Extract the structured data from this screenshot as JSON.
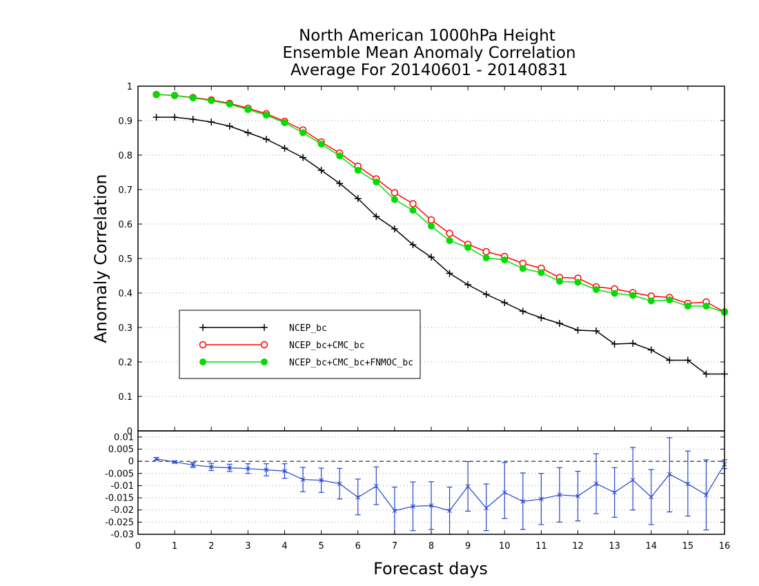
{
  "chart_data": [
    {
      "type": "line",
      "title": [
        "North American 1000hPa Height",
        "Ensemble Mean Anomaly Correlation",
        "Average For 20140601 - 20140831"
      ],
      "ylabel": "Anomaly Correlation",
      "ylim": [
        0,
        1
      ],
      "yticks": [
        "0",
        "0.1",
        "0.2",
        "0.3",
        "0.4",
        "0.5",
        "0.6",
        "0.7",
        "0.8",
        "0.9",
        "1"
      ],
      "grid": true,
      "legend_position": "left-center",
      "x": [
        0.5,
        1,
        1.5,
        2,
        2.5,
        3,
        3.5,
        4,
        4.5,
        5,
        5.5,
        6,
        6.5,
        7,
        7.5,
        8,
        8.5,
        9,
        9.5,
        10,
        10.5,
        11,
        11.5,
        12,
        12.5,
        13,
        13.5,
        14,
        14.5,
        15,
        15.5,
        16
      ],
      "series": [
        {
          "name": "NCEP_bc",
          "color": "#000000",
          "marker": "plus",
          "values": [
            0.91,
            0.91,
            0.904,
            0.896,
            0.884,
            0.865,
            0.846,
            0.82,
            0.793,
            0.756,
            0.718,
            0.674,
            0.622,
            0.586,
            0.54,
            0.504,
            0.457,
            0.424,
            0.396,
            0.372,
            0.347,
            0.328,
            0.312,
            0.292,
            0.29,
            0.252,
            0.254,
            0.235,
            0.205,
            0.205,
            0.165,
            0.165
          ]
        },
        {
          "name": "NCEP_bc+CMC_bc",
          "color": "#ff0000",
          "marker": "open-circle",
          "values": [
            0.976,
            0.973,
            0.967,
            0.96,
            0.95,
            0.936,
            0.92,
            0.898,
            0.873,
            0.838,
            0.806,
            0.768,
            0.731,
            0.691,
            0.659,
            0.612,
            0.573,
            0.541,
            0.52,
            0.506,
            0.486,
            0.472,
            0.445,
            0.443,
            0.418,
            0.412,
            0.401,
            0.391,
            0.387,
            0.37,
            0.374,
            0.345
          ]
        },
        {
          "name": "NCEP_bc+CMC_bc+FNMOC_bc",
          "color": "#00dd00",
          "marker": "filled-circle",
          "values": [
            0.976,
            0.973,
            0.966,
            0.958,
            0.948,
            0.932,
            0.916,
            0.894,
            0.865,
            0.832,
            0.798,
            0.756,
            0.722,
            0.671,
            0.64,
            0.594,
            0.552,
            0.532,
            0.502,
            0.496,
            0.471,
            0.459,
            0.434,
            0.431,
            0.41,
            0.399,
            0.393,
            0.377,
            0.38,
            0.362,
            0.362,
            0.344
          ]
        }
      ]
    },
    {
      "type": "line",
      "xlabel": "Forecast days",
      "xlim": [
        0,
        16
      ],
      "xticks": [
        "0",
        "1",
        "2",
        "3",
        "4",
        "5",
        "6",
        "7",
        "8",
        "9",
        "10",
        "11",
        "12",
        "13",
        "14",
        "15",
        "16"
      ],
      "ylim": [
        -0.03,
        0.0125
      ],
      "yticks": [
        "-0.03",
        "-0.025",
        "-0.02",
        "-0.015",
        "-0.01",
        "-0.005",
        "0",
        "0.005",
        "0.01"
      ],
      "zero_line": true,
      "grid": true,
      "series": [
        {
          "color": "#2244cc",
          "marker": "error-bar",
          "x": [
            0.5,
            1,
            1.5,
            2,
            2.5,
            3,
            3.5,
            4,
            4.5,
            5,
            5.5,
            6,
            6.5,
            7,
            7.5,
            8,
            8.5,
            9,
            9.5,
            10,
            10.5,
            11,
            11.5,
            12,
            12.5,
            13,
            13.5,
            14,
            14.5,
            15,
            15.5,
            16
          ],
          "values": [
            0.001,
            -0.0003,
            -0.0015,
            -0.0023,
            -0.0027,
            -0.003,
            -0.0035,
            -0.004,
            -0.0075,
            -0.0078,
            -0.0092,
            -0.0148,
            -0.0102,
            -0.0203,
            -0.0185,
            -0.0182,
            -0.0203,
            -0.0103,
            -0.0192,
            -0.0128,
            -0.0165,
            -0.0155,
            -0.0138,
            -0.0143,
            -0.0092,
            -0.0128,
            -0.0077,
            -0.0147,
            -0.0053,
            -0.0093,
            -0.0138,
            -0.0012
          ],
          "low": [
            0.0005,
            -0.0007,
            -0.0025,
            -0.0038,
            -0.0042,
            -0.005,
            -0.006,
            -0.007,
            -0.0125,
            -0.0128,
            -0.0155,
            -0.022,
            -0.0178,
            -0.03,
            -0.0285,
            -0.028,
            -0.03,
            -0.0205,
            -0.0285,
            -0.0235,
            -0.028,
            -0.026,
            -0.025,
            -0.0245,
            -0.0215,
            -0.023,
            -0.02,
            -0.026,
            -0.0208,
            -0.0225,
            -0.0282,
            -0.003
          ],
          "high": [
            0.0015,
            0.0001,
            -0.0005,
            -0.0008,
            -0.0012,
            -0.001,
            -0.001,
            -0.001,
            -0.0025,
            -0.0028,
            -0.0029,
            -0.0073,
            -0.0023,
            -0.0106,
            -0.0085,
            -0.0084,
            -0.0106,
            -0.0001,
            -0.0093,
            -0.0005,
            -0.0048,
            -0.005,
            -0.0026,
            -0.0041,
            0.0031,
            -0.0026,
            0.0057,
            -0.0034,
            0.0097,
            0.0042,
            0.0006,
            0.0006
          ]
        }
      ]
    }
  ]
}
